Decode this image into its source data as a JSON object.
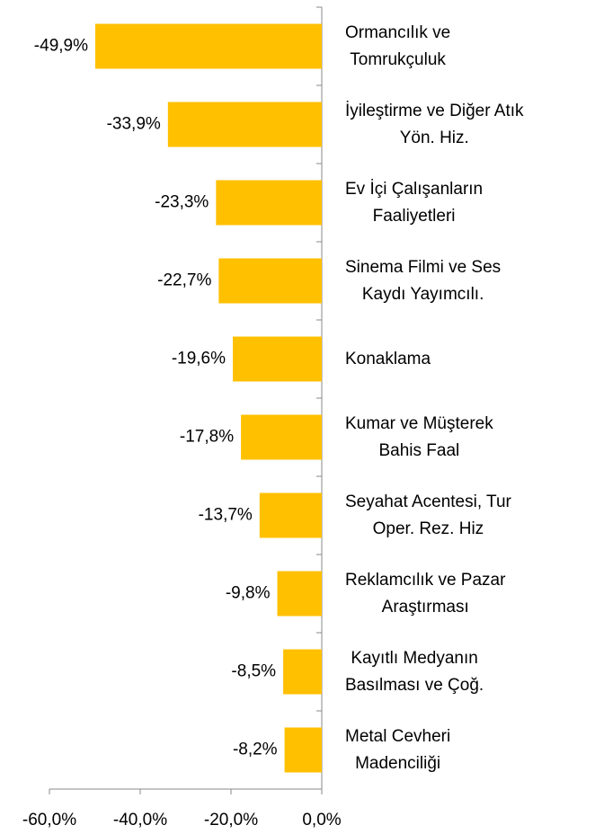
{
  "chart_data": {
    "type": "bar",
    "orientation": "horizontal",
    "categories": [
      "Ormancılık ve\nTomrukçuluk",
      "İyileştirme ve Diğer Atık\nYön. Hiz.",
      "Ev İçi Çalışanların\nFaaliyetleri",
      "Sinema Filmi ve Ses\nKaydı Yayımcılı.",
      "Konaklama",
      "Kumar ve Müşterek\nBahis Faal",
      "Seyahat Acentesi, Tur\nOper. Rez. Hiz",
      "Reklamcılık ve Pazar\nAraştırması",
      "Kayıtlı Medyanın\nBasılması ve Çoğ.",
      "Metal Cevheri\nMadenciliği"
    ],
    "values": [
      -49.9,
      -33.9,
      -23.3,
      -22.7,
      -19.6,
      -17.8,
      -13.7,
      -9.8,
      -8.5,
      -8.2
    ],
    "value_labels": [
      "-49,9%",
      "-33,9%",
      "-23,3%",
      "-22,7%",
      "-19,6%",
      "-17,8%",
      "-13,7%",
      "-9,8%",
      "-8,5%",
      "-8,2%"
    ],
    "color": "#FFC000",
    "xlim": [
      -60,
      0
    ],
    "xticks": [
      {
        "value": -60,
        "label": "-60,0%"
      },
      {
        "value": -40,
        "label": "-40,0%"
      },
      {
        "value": -20,
        "label": "-20,0%"
      },
      {
        "value": 0,
        "label": "0,0%"
      }
    ]
  }
}
